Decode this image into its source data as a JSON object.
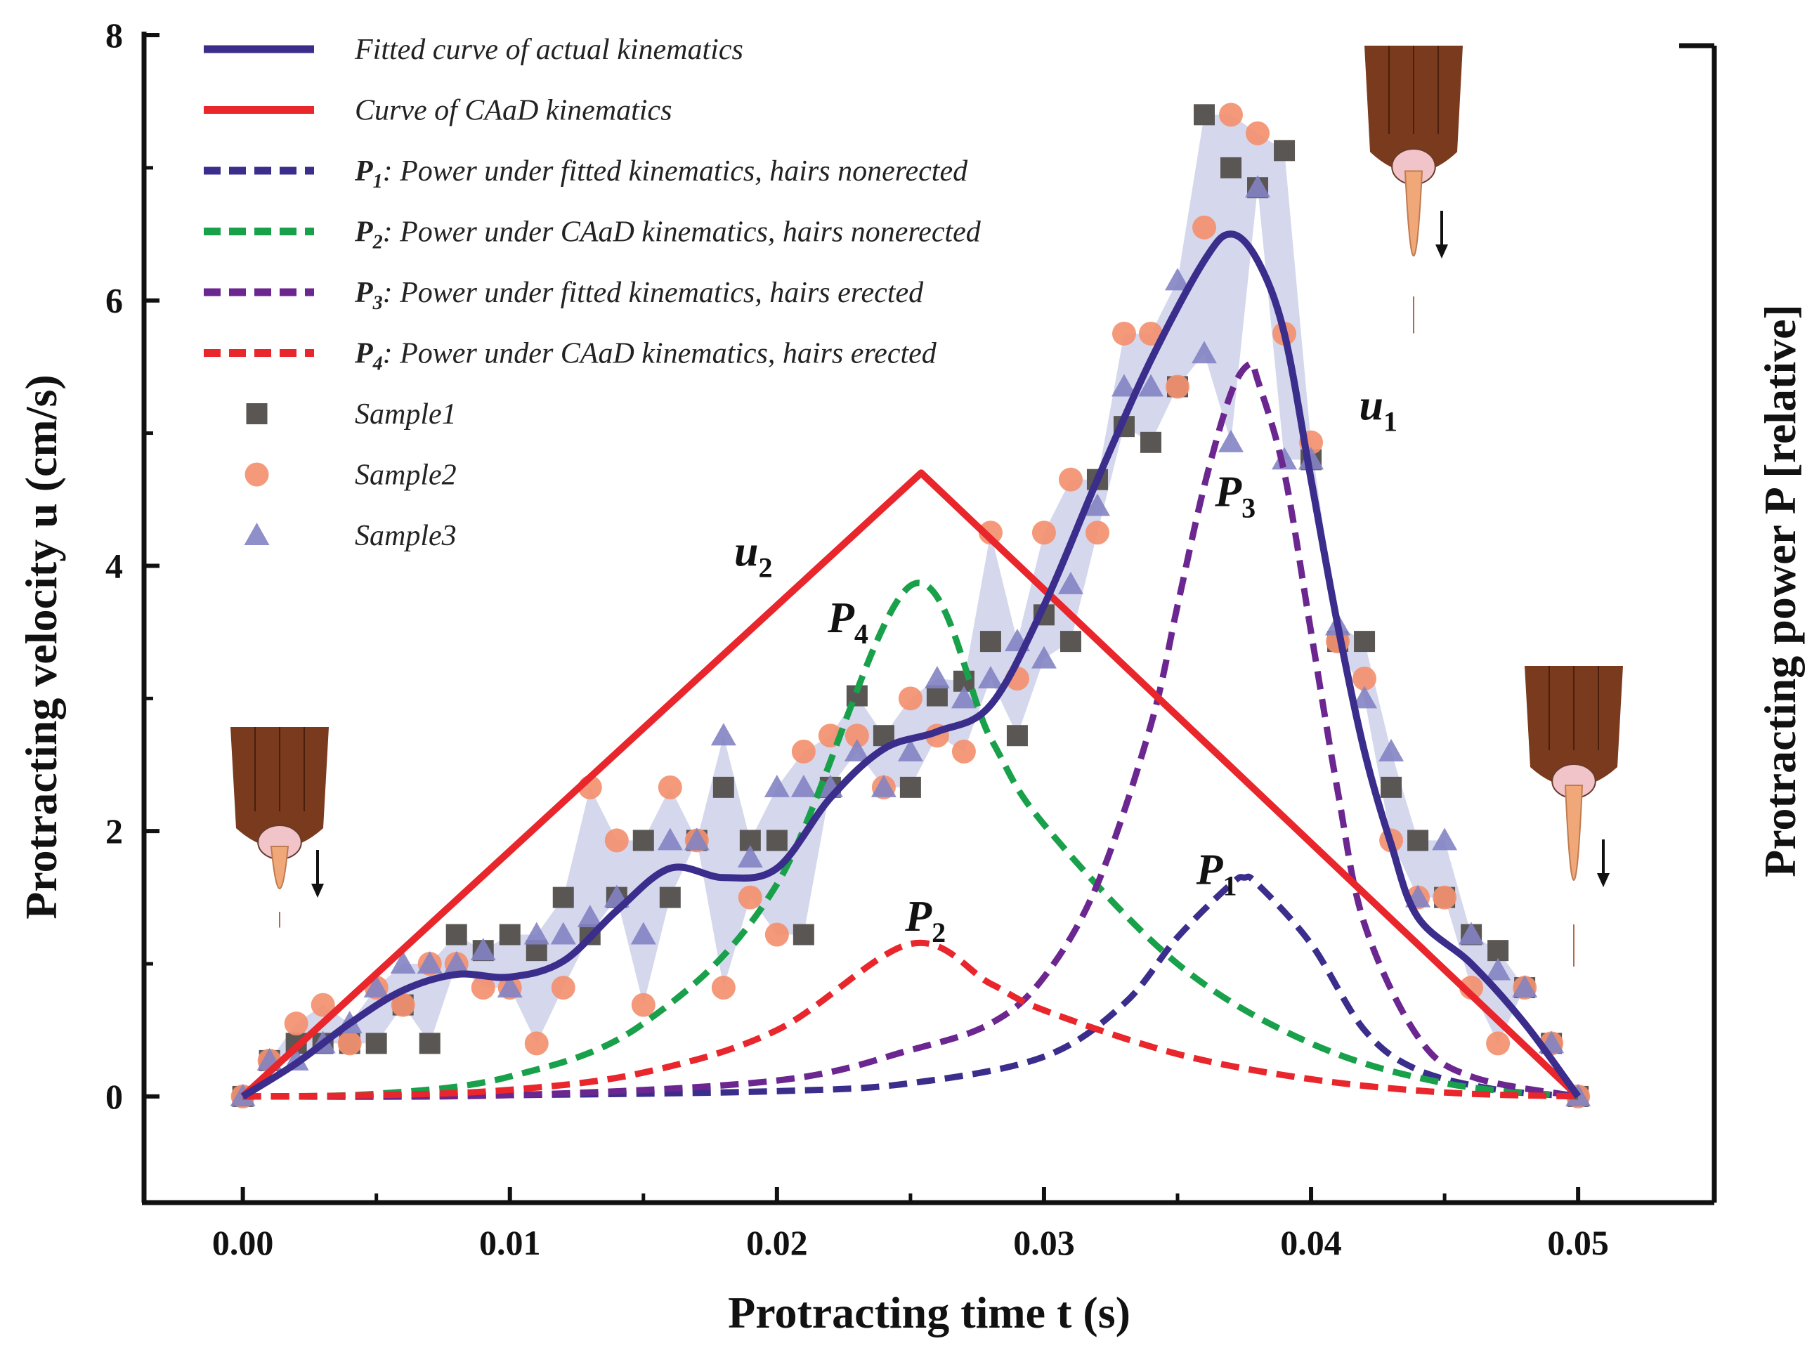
{
  "chart_data": {
    "type": "line",
    "title": "",
    "xlabel": "Protracting time t (s)",
    "ylabel": "Protracting velocity u (cm/s)",
    "y2label": "Protracting power P [relative]",
    "xlim": [
      -0.0037,
      0.0551
    ],
    "ylim": [
      -0.8,
      8
    ],
    "xticks": [
      0.0,
      0.01,
      0.02,
      0.03,
      0.04,
      0.05
    ],
    "xtick_labels": [
      "0.00",
      "0.01",
      "0.02",
      "0.03",
      "0.04",
      "0.05"
    ],
    "yticks": [
      0,
      2,
      4,
      6,
      8
    ],
    "ytick_labels": [
      "0",
      "2",
      "4",
      "6",
      "8"
    ],
    "annotations": [
      {
        "text": "u",
        "sub": "1",
        "x": 0.0418,
        "y": 5.1
      },
      {
        "text": "u",
        "sub": "2",
        "x": 0.0184,
        "y": 4.0
      },
      {
        "text": "P",
        "sub": "1",
        "x": 0.0357,
        "y": 1.6
      },
      {
        "text": "P",
        "sub": "2",
        "x": 0.0248,
        "y": 1.25
      },
      {
        "text": "P",
        "sub": "3",
        "x": 0.0364,
        "y": 4.45
      },
      {
        "text": "P",
        "sub": "4",
        "x": 0.0219,
        "y": 3.5
      }
    ],
    "series": [
      {
        "name": "Fitted curve of actual kinematics",
        "label_sub": "",
        "kind": "line",
        "color": "#3a2d8c",
        "dash": false,
        "x": [
          0,
          0.002,
          0.004,
          0.006,
          0.008,
          0.01,
          0.012,
          0.014,
          0.016,
          0.018,
          0.02,
          0.022,
          0.024,
          0.026,
          0.028,
          0.03,
          0.032,
          0.034,
          0.036,
          0.037,
          0.038,
          0.039,
          0.04,
          0.041,
          0.042,
          0.043,
          0.044,
          0.046,
          0.048,
          0.05
        ],
        "y": [
          0,
          0.25,
          0.55,
          0.8,
          0.92,
          0.9,
          1.02,
          1.4,
          1.72,
          1.65,
          1.72,
          2.25,
          2.62,
          2.75,
          2.95,
          3.7,
          4.65,
          5.55,
          6.3,
          6.5,
          6.3,
          5.75,
          4.65,
          3.55,
          2.6,
          1.9,
          1.35,
          1.0,
          0.55,
          0
        ]
      },
      {
        "name": "Curve of CAaD kinematics",
        "label_sub": "",
        "kind": "line",
        "color": "#e8262b",
        "dash": false,
        "x": [
          0,
          0.0254,
          0.05
        ],
        "y": [
          0,
          4.7,
          0
        ]
      },
      {
        "name": "Power under fitted kinematics, hairs nonerected",
        "label_prefix": "P",
        "label_sub": "1",
        "kind": "line",
        "color": "#3a2d8c",
        "dash": true,
        "x": [
          0,
          0.01,
          0.02,
          0.025,
          0.03,
          0.033,
          0.035,
          0.037,
          0.0375,
          0.038,
          0.04,
          0.042,
          0.044,
          0.047,
          0.05
        ],
        "y": [
          0,
          0.01,
          0.04,
          0.1,
          0.3,
          0.7,
          1.2,
          1.6,
          1.65,
          1.6,
          1.15,
          0.5,
          0.2,
          0.05,
          0
        ]
      },
      {
        "name": "Power under CAaD kinematics, hairs nonerected",
        "label_prefix": "P",
        "label_sub": "2",
        "kind": "line",
        "color": "#18a14a",
        "dash": true,
        "x": [
          0,
          0.005,
          0.01,
          0.015,
          0.02,
          0.025,
          0.028,
          0.03,
          0.035,
          0.04,
          0.045,
          0.05
        ],
        "y": [
          0,
          0.02,
          0.15,
          0.55,
          1.6,
          3.85,
          2.7,
          2.05,
          1.0,
          0.4,
          0.1,
          0
        ]
      },
      {
        "name": "Power under fitted kinematics, hairs erected",
        "label_prefix": "P",
        "label_sub": "3",
        "kind": "line",
        "color": "#6b2690",
        "dash": true,
        "x": [
          0,
          0.01,
          0.02,
          0.025,
          0.028,
          0.03,
          0.032,
          0.034,
          0.035,
          0.036,
          0.037,
          0.0377,
          0.038,
          0.039,
          0.04,
          0.041,
          0.042,
          0.044,
          0.046,
          0.05
        ],
        "y": [
          0,
          0.01,
          0.12,
          0.35,
          0.55,
          0.9,
          1.6,
          2.8,
          3.7,
          4.6,
          5.3,
          5.52,
          5.4,
          4.7,
          3.5,
          2.3,
          1.3,
          0.45,
          0.15,
          0
        ]
      },
      {
        "name": "Power under CAaD kinematics, hairs erected",
        "label_prefix": "P",
        "label_sub": "4",
        "kind": "line",
        "color": "#e8262b",
        "dash": true,
        "x": [
          0,
          0.005,
          0.01,
          0.015,
          0.02,
          0.025,
          0.028,
          0.03,
          0.035,
          0.04,
          0.045,
          0.05
        ],
        "y": [
          0,
          0.01,
          0.05,
          0.18,
          0.5,
          1.15,
          0.85,
          0.65,
          0.32,
          0.13,
          0.03,
          0
        ]
      },
      {
        "name": "Sample1",
        "label_sub": "",
        "kind": "scatter",
        "marker": "square",
        "color": "#5a5653",
        "x": [
          0,
          0.001,
          0.002,
          0.003,
          0.004,
          0.005,
          0.006,
          0.007,
          0.008,
          0.009,
          0.01,
          0.011,
          0.012,
          0.013,
          0.014,
          0.015,
          0.016,
          0.017,
          0.018,
          0.019,
          0.02,
          0.021,
          0.022,
          0.023,
          0.024,
          0.025,
          0.026,
          0.027,
          0.028,
          0.029,
          0.03,
          0.031,
          0.032,
          0.033,
          0.034,
          0.035,
          0.036,
          0.037,
          0.038,
          0.039,
          0.04,
          0.041,
          0.042,
          0.043,
          0.044,
          0.045,
          0.046,
          0.047,
          0.048,
          0.049,
          0.05
        ],
        "y": [
          0,
          0.27,
          0.4,
          0.4,
          0.4,
          0.4,
          0.69,
          0.4,
          1.22,
          1.1,
          1.22,
          1.1,
          1.5,
          1.22,
          1.5,
          1.93,
          1.5,
          1.93,
          2.33,
          1.93,
          1.93,
          1.22,
          2.33,
          3.02,
          2.72,
          2.33,
          3.02,
          3.13,
          3.43,
          2.72,
          3.63,
          3.43,
          4.65,
          5.05,
          4.93,
          5.35,
          7.4,
          7.0,
          6.85,
          7.13,
          4.8,
          3.43,
          3.43,
          2.33,
          1.93,
          1.5,
          1.22,
          1.1,
          0.82,
          0.4,
          0
        ]
      },
      {
        "name": "Sample2",
        "label_sub": "",
        "kind": "scatter",
        "marker": "circle",
        "color": "#f3906f",
        "x": [
          0,
          0.001,
          0.002,
          0.003,
          0.004,
          0.005,
          0.006,
          0.007,
          0.008,
          0.009,
          0.01,
          0.011,
          0.012,
          0.013,
          0.014,
          0.015,
          0.016,
          0.017,
          0.018,
          0.019,
          0.02,
          0.021,
          0.022,
          0.023,
          0.024,
          0.025,
          0.026,
          0.027,
          0.028,
          0.029,
          0.03,
          0.031,
          0.032,
          0.033,
          0.034,
          0.035,
          0.036,
          0.037,
          0.038,
          0.039,
          0.04,
          0.041,
          0.042,
          0.043,
          0.044,
          0.045,
          0.046,
          0.047,
          0.048,
          0.049,
          0.05
        ],
        "y": [
          0,
          0.27,
          0.55,
          0.69,
          0.4,
          0.82,
          0.69,
          1.0,
          1.0,
          0.82,
          0.82,
          0.4,
          0.82,
          2.33,
          1.93,
          0.69,
          2.33,
          1.93,
          0.82,
          1.5,
          1.22,
          2.6,
          2.72,
          2.72,
          2.33,
          3.0,
          2.72,
          2.6,
          4.25,
          3.15,
          4.25,
          4.65,
          4.25,
          5.75,
          5.75,
          5.35,
          6.55,
          7.4,
          7.26,
          5.75,
          4.93,
          3.43,
          3.15,
          1.93,
          1.5,
          1.5,
          0.82,
          0.4,
          0.82,
          0.4,
          0
        ]
      },
      {
        "name": "Sample3",
        "label_sub": "",
        "kind": "scatter",
        "marker": "triangle",
        "color": "#8383c3",
        "x": [
          0,
          0.001,
          0.002,
          0.003,
          0.004,
          0.005,
          0.006,
          0.007,
          0.008,
          0.009,
          0.01,
          0.011,
          0.012,
          0.013,
          0.014,
          0.015,
          0.016,
          0.017,
          0.018,
          0.019,
          0.02,
          0.021,
          0.022,
          0.023,
          0.024,
          0.025,
          0.026,
          0.027,
          0.028,
          0.029,
          0.03,
          0.031,
          0.032,
          0.033,
          0.034,
          0.035,
          0.036,
          0.037,
          0.038,
          0.039,
          0.04,
          0.041,
          0.042,
          0.043,
          0.044,
          0.045,
          0.046,
          0.047,
          0.048,
          0.049,
          0.05
        ],
        "y": [
          0,
          0.27,
          0.27,
          0.4,
          0.55,
          0.82,
          1.0,
          1.0,
          1.0,
          1.1,
          0.82,
          1.22,
          1.22,
          1.35,
          1.5,
          1.22,
          1.93,
          1.93,
          2.72,
          1.8,
          2.33,
          2.33,
          2.33,
          2.6,
          2.33,
          2.6,
          3.15,
          3.0,
          3.15,
          3.43,
          3.3,
          3.86,
          4.45,
          5.35,
          5.35,
          6.15,
          5.6,
          4.93,
          6.85,
          4.8,
          4.8,
          3.55,
          3.0,
          2.6,
          1.5,
          1.93,
          1.22,
          0.95,
          0.82,
          0.4,
          0
        ]
      }
    ],
    "legend_position": "top-left"
  }
}
